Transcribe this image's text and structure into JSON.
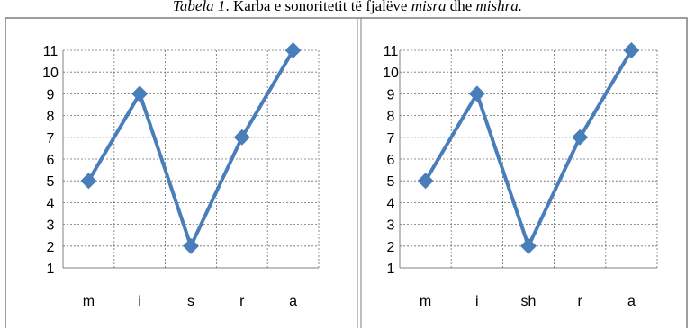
{
  "caption": {
    "prefix": "Tabela 1",
    "text": ". Karba e sonoritetit të fjalëve ",
    "word1": "misra",
    "conj": " dhe ",
    "word2": "mishra."
  },
  "chart_data": [
    {
      "type": "line",
      "categories": [
        "m",
        "i",
        "s",
        "r",
        "a"
      ],
      "series": [
        {
          "values": [
            5,
            9,
            2,
            7,
            11
          ]
        }
      ],
      "ylim": [
        1,
        11
      ],
      "yticks": [
        "1",
        "2",
        "3",
        "4",
        "5",
        "6",
        "7",
        "8",
        "9",
        "10",
        "11"
      ],
      "grid": true,
      "marker": "diamond",
      "color": "#4a7ebb"
    },
    {
      "type": "line",
      "categories": [
        "m",
        "i",
        "sh",
        "r",
        "a"
      ],
      "series": [
        {
          "values": [
            5,
            9,
            2,
            7,
            11
          ]
        }
      ],
      "ylim": [
        1,
        11
      ],
      "yticks": [
        "1",
        "2",
        "3",
        "4",
        "5",
        "6",
        "7",
        "8",
        "9",
        "10",
        "11"
      ],
      "grid": true,
      "marker": "diamond",
      "color": "#4a7ebb"
    }
  ]
}
